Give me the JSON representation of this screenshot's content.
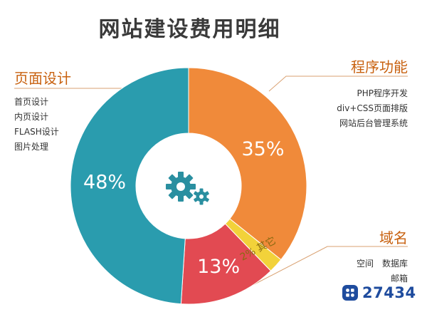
{
  "title": "网站建设费用明细",
  "chart_data": {
    "type": "pie",
    "variant": "donut",
    "slices": [
      {
        "label": "程序功能",
        "value": 35,
        "value_label": "35%",
        "color": "#f08a3a"
      },
      {
        "label": "其它",
        "value": 2,
        "value_label": "2% 其它",
        "color": "#f2d23a"
      },
      {
        "label": "域名",
        "value": 13,
        "value_label": "13%",
        "color": "#e24a52"
      },
      {
        "label": "页面设计",
        "value": 48,
        "value_label": "48%",
        "color": "#2a9cae"
      }
    ],
    "center_icon": "gears-icon"
  },
  "groups": {
    "page_design": {
      "title": "页面设计",
      "items": [
        "首页设计",
        "内页设计",
        "FLASH设计",
        "图片处理"
      ]
    },
    "program": {
      "title": "程序功能",
      "items": [
        "PHP程序开发",
        "div+CSS页面排版",
        "网站后台管理系统"
      ]
    },
    "domain": {
      "title": "域名",
      "items": [
        "空间　数据库",
        "邮箱"
      ]
    }
  },
  "watermark": {
    "text": "27434",
    "icon": "app-grid-icon"
  }
}
